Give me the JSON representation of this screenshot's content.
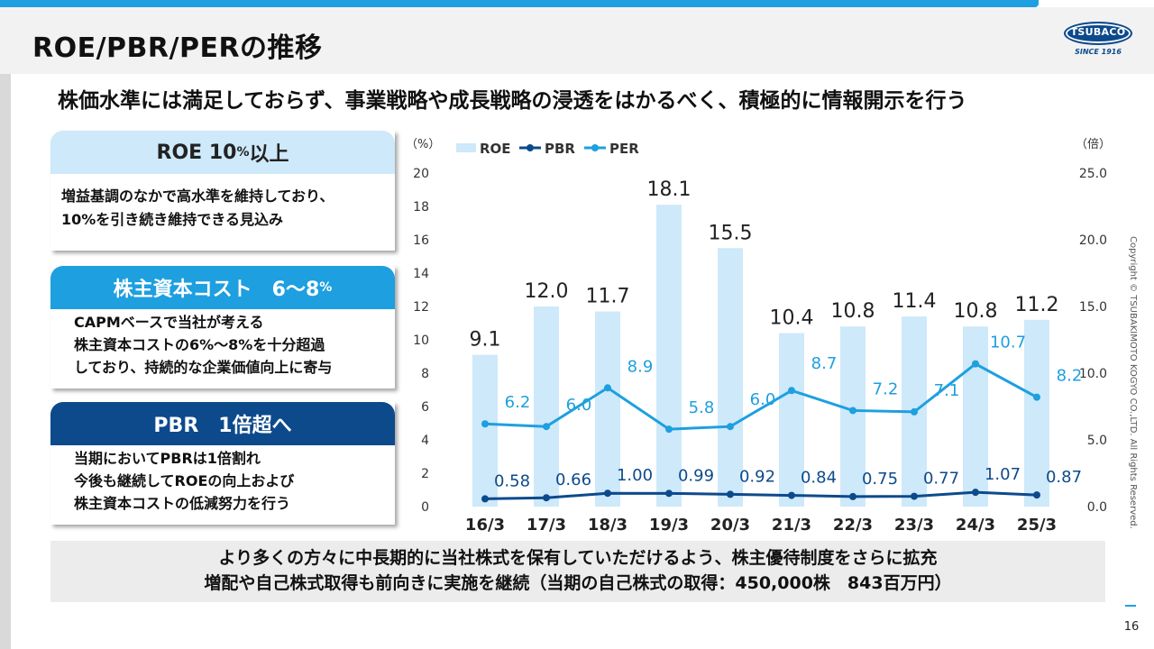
{
  "page": {
    "title": "ROE/PBR/PERの推移",
    "headline": "株価水準には満足しておらず、事業戦略や成長戦略の浸透をはかるべく、積極的に情報開示を行う",
    "logo": {
      "name": "TSUBACO",
      "since": "SINCE 1916"
    },
    "copyright": "Copyright © TSUBAKIMOTO KOGYO CO.,LTD. All Rights Reserved.",
    "page_number": "16"
  },
  "cards": [
    {
      "title_main": "ROE 10",
      "title_small": "%",
      "title_suffix": "以上",
      "lines": [
        "増益基調のなかで高水準を維持しており、",
        "10%を引き続き維持できる見込み"
      ]
    },
    {
      "title_main": "株主資本コスト　6～8",
      "title_small": "%",
      "title_suffix": "",
      "lines": [
        "CAPMベースで当社が考える",
        "株主資本コストの6%～8%を十分超過",
        "しており、持続的な企業価値向上に寄与"
      ]
    },
    {
      "title_main": "PBR　1倍超へ",
      "title_small": "",
      "title_suffix": "",
      "lines": [
        "当期においてPBRは1倍割れ",
        "今後も継続してROEの向上および",
        "株主資本コストの低減努力を行う"
      ]
    }
  ],
  "bottom": {
    "line1": "より多くの方々に中長期的に当社株式を保有していただけるよう、株主優待制度をさらに拡充",
    "line2": "増配や自己株式取得も前向きに実施を継続（当期の自己株式の取得：450,000株　843百万円）"
  },
  "chart_data": {
    "type": "bar",
    "categories": [
      "16/3",
      "17/3",
      "18/3",
      "19/3",
      "20/3",
      "21/3",
      "22/3",
      "23/3",
      "24/3",
      "25/3"
    ],
    "series": [
      {
        "name": "ROE",
        "type": "bar",
        "axis": "left",
        "color": "#cde9fa",
        "values": [
          9.1,
          12.0,
          11.7,
          18.1,
          15.5,
          10.4,
          10.8,
          11.4,
          10.8,
          11.2
        ],
        "labels": [
          "9.1",
          "12.0",
          "11.7",
          "18.1",
          "15.5",
          "10.4",
          "10.8",
          "11.4",
          "10.8",
          "11.2"
        ]
      },
      {
        "name": "PBR",
        "type": "line",
        "axis": "right",
        "color": "#0d4a8c",
        "values": [
          0.58,
          0.66,
          1.0,
          0.99,
          0.92,
          0.84,
          0.75,
          0.77,
          1.07,
          0.87
        ],
        "labels": [
          "0.58",
          "0.66",
          "1.00",
          "0.99",
          "0.92",
          "0.84",
          "0.75",
          "0.77",
          "1.07",
          "0.87"
        ]
      },
      {
        "name": "PER",
        "type": "line",
        "axis": "right",
        "color": "#1e9fe0",
        "values": [
          6.2,
          6.0,
          8.9,
          5.8,
          6.0,
          8.7,
          7.2,
          7.1,
          10.7,
          8.2
        ],
        "labels": [
          "6.2",
          "6.0",
          "8.9",
          "5.8",
          "6.0",
          "8.7",
          "7.2",
          "7.1",
          "10.7",
          "8.2"
        ]
      }
    ],
    "left_axis": {
      "unit": "（%）",
      "range": [
        0,
        20
      ],
      "ticks": [
        "0",
        "2",
        "4",
        "6",
        "8",
        "10",
        "12",
        "14",
        "16",
        "18",
        "20"
      ]
    },
    "right_axis": {
      "unit": "（倍）",
      "range": [
        0,
        25
      ],
      "ticks": [
        "0.0",
        "5.0",
        "10.0",
        "15.0",
        "20.0",
        "25.0"
      ]
    },
    "legend_position": "top-left",
    "grid": false
  }
}
